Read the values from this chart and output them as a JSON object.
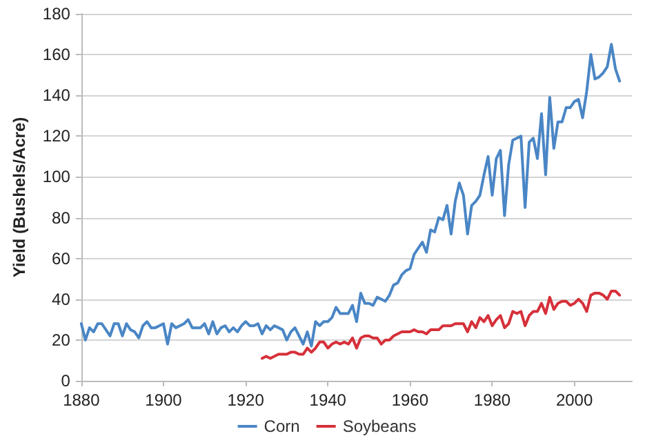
{
  "chart_data": {
    "type": "line",
    "ylabel": "Yield (Bushels/Acre)",
    "xlim": [
      1880,
      2014
    ],
    "xticks": [
      1880,
      1900,
      1920,
      1940,
      1960,
      1980,
      2000
    ],
    "ylim": [
      0,
      180
    ],
    "yticks": [
      0,
      20,
      40,
      60,
      80,
      100,
      120,
      140,
      160,
      180
    ],
    "grid": "y",
    "legend": "bottom",
    "marker": "none",
    "line_style": "solid",
    "series": [
      {
        "name": "Corn",
        "color": "#4a86c5",
        "x": [
          1880,
          1881,
          1882,
          1883,
          1884,
          1885,
          1886,
          1887,
          1888,
          1889,
          1890,
          1891,
          1892,
          1893,
          1894,
          1895,
          1896,
          1897,
          1898,
          1899,
          1900,
          1901,
          1902,
          1903,
          1904,
          1905,
          1906,
          1907,
          1908,
          1909,
          1910,
          1911,
          1912,
          1913,
          1914,
          1915,
          1916,
          1917,
          1918,
          1919,
          1920,
          1921,
          1922,
          1923,
          1924,
          1925,
          1926,
          1927,
          1928,
          1929,
          1930,
          1931,
          1932,
          1933,
          1934,
          1935,
          1936,
          1937,
          1938,
          1939,
          1940,
          1941,
          1942,
          1943,
          1944,
          1945,
          1946,
          1947,
          1948,
          1949,
          1950,
          1951,
          1952,
          1953,
          1954,
          1955,
          1956,
          1957,
          1958,
          1959,
          1960,
          1961,
          1962,
          1963,
          1964,
          1965,
          1966,
          1967,
          1968,
          1969,
          1970,
          1971,
          1972,
          1973,
          1974,
          1975,
          1976,
          1977,
          1978,
          1979,
          1980,
          1981,
          1982,
          1983,
          1984,
          1985,
          1986,
          1987,
          1988,
          1989,
          1990,
          1991,
          1992,
          1993,
          1994,
          1995,
          1996,
          1997,
          1998,
          1999,
          2000,
          2001,
          2002,
          2003,
          2004,
          2005,
          2006,
          2007,
          2008,
          2009,
          2010,
          2011
        ],
        "values": [
          28,
          20,
          26,
          24,
          28,
          28,
          25,
          22,
          28,
          28,
          22,
          28,
          25,
          24,
          21,
          27,
          29,
          26,
          26,
          27,
          28,
          18,
          28,
          26,
          27,
          28,
          30,
          26,
          26,
          26,
          28,
          23,
          29,
          23,
          26,
          27,
          24,
          26,
          24,
          27,
          29,
          27,
          27,
          28,
          23,
          27,
          25,
          27,
          26,
          25,
          20,
          24,
          26,
          22,
          18,
          24,
          17,
          29,
          27,
          29,
          29,
          31,
          36,
          33,
          33,
          33,
          37,
          29,
          43,
          38,
          38,
          37,
          41,
          40,
          39,
          42,
          47,
          48,
          52,
          54,
          55,
          62,
          65,
          68,
          63,
          74,
          73,
          80,
          79,
          86,
          72,
          88,
          97,
          91,
          72,
          86,
          88,
          91,
          101,
          110,
          91,
          109,
          113,
          81,
          106,
          118,
          119,
          120,
          85,
          117,
          119,
          109,
          131,
          101,
          139,
          114,
          127,
          127,
          134,
          134,
          137,
          138,
          129,
          142,
          160,
          148,
          149,
          151,
          154,
          165,
          153,
          147
        ]
      },
      {
        "name": "Soybeans",
        "color": "#d6303a",
        "x": [
          1924,
          1925,
          1926,
          1927,
          1928,
          1929,
          1930,
          1931,
          1932,
          1933,
          1934,
          1935,
          1936,
          1937,
          1938,
          1939,
          1940,
          1941,
          1942,
          1943,
          1944,
          1945,
          1946,
          1947,
          1948,
          1949,
          1950,
          1951,
          1952,
          1953,
          1954,
          1955,
          1956,
          1957,
          1958,
          1959,
          1960,
          1961,
          1962,
          1963,
          1964,
          1965,
          1966,
          1967,
          1968,
          1969,
          1970,
          1971,
          1972,
          1973,
          1974,
          1975,
          1976,
          1977,
          1978,
          1979,
          1980,
          1981,
          1982,
          1983,
          1984,
          1985,
          1986,
          1987,
          1988,
          1989,
          1990,
          1991,
          1992,
          1993,
          1994,
          1995,
          1996,
          1997,
          1998,
          1999,
          2000,
          2001,
          2002,
          2003,
          2004,
          2005,
          2006,
          2007,
          2008,
          2009,
          2010,
          2011
        ],
        "values": [
          11,
          12,
          11,
          12,
          13,
          13,
          13,
          14,
          14,
          13,
          13,
          16,
          14,
          16,
          19,
          19,
          16,
          18,
          19,
          18,
          19,
          18,
          21,
          16,
          21,
          22,
          22,
          21,
          21,
          18,
          20,
          20,
          22,
          23,
          24,
          24,
          24,
          25,
          24,
          24,
          23,
          25,
          25,
          25,
          27,
          27,
          27,
          28,
          28,
          28,
          24,
          29,
          26,
          31,
          29,
          32,
          27,
          30,
          32,
          26,
          28,
          34,
          33,
          34,
          27,
          32,
          34,
          34,
          38,
          33,
          41,
          35,
          38,
          39,
          39,
          37,
          38,
          40,
          38,
          34,
          42,
          43,
          43,
          42,
          40,
          44,
          44,
          42
        ]
      }
    ]
  }
}
